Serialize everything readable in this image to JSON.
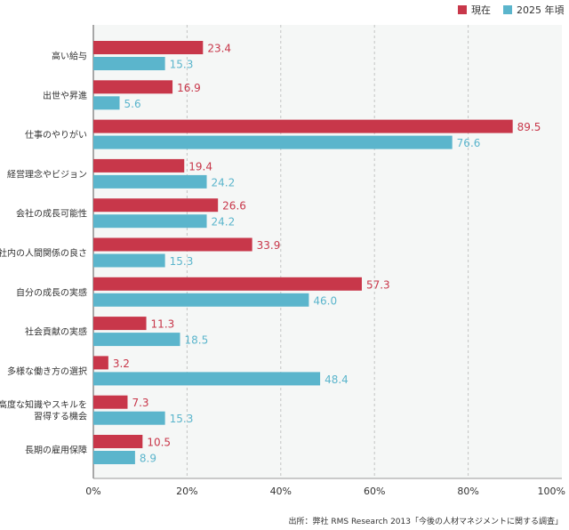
{
  "chart_data": {
    "type": "bar",
    "orientation": "horizontal",
    "categories": [
      "高い給与",
      "出世や昇進",
      "仕事のやりがい",
      "経営理念やビジョン",
      "会社の成長可能性",
      "社内の人間関係の良さ",
      "自分の成長の実感",
      "社会貢献の実感",
      "多様な働き方の選択",
      "高度な知識やスキルを\n習得する機会",
      "長期の雇用保障"
    ],
    "series": [
      {
        "name": "現在",
        "color": "#c8374a",
        "values": [
          23.4,
          16.9,
          89.5,
          19.4,
          26.6,
          33.9,
          57.3,
          11.3,
          3.2,
          7.3,
          10.5
        ]
      },
      {
        "name": "2025 年頃",
        "color": "#5bb5cc",
        "values": [
          15.3,
          5.6,
          76.6,
          24.2,
          24.2,
          15.3,
          46.0,
          18.5,
          48.4,
          15.3,
          8.9
        ]
      }
    ],
    "value_labels": [
      [
        "23.4",
        "16.9",
        "89.5",
        "19.4",
        "26.6",
        "33.9",
        "57.3",
        "11.3",
        "3.2",
        "7.3",
        "10.5"
      ],
      [
        "15.3",
        "5.6",
        "76.6",
        "24.2",
        "24.2",
        "15.3",
        "46.0",
        "18.5",
        "48.4",
        "15.3",
        "8.9"
      ]
    ],
    "xlim": [
      0,
      100
    ],
    "xticks": [
      0,
      20,
      40,
      60,
      80,
      100
    ],
    "xtick_labels": [
      "0%",
      "20%",
      "40%",
      "60%",
      "80%",
      "100%"
    ],
    "grid": true,
    "legend_position": "top-right",
    "plot_background": "#f5f7f6",
    "source_note": "出所：弊社 RMS Research 2013「今後の人材マネジメントに関する調査」"
  }
}
